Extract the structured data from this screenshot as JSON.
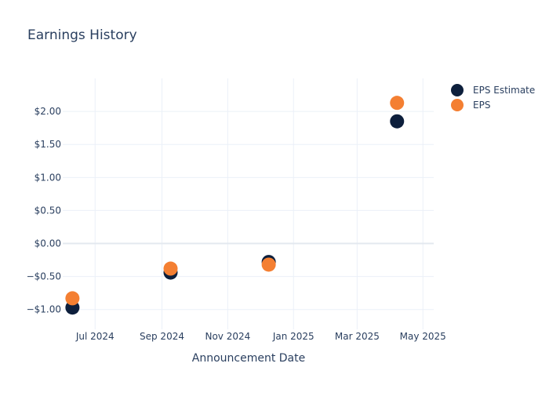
{
  "chart_data": {
    "type": "scatter",
    "title": "Earnings History",
    "xlabel": "Announcement Date",
    "ylabel": "",
    "x_ticks": [
      {
        "date": "2024-07-01",
        "label": "Jul 2024"
      },
      {
        "date": "2024-09-01",
        "label": "Sep 2024"
      },
      {
        "date": "2024-11-01",
        "label": "Nov 2024"
      },
      {
        "date": "2025-01-01",
        "label": "Jan 2025"
      },
      {
        "date": "2025-03-01",
        "label": "Mar 2025"
      },
      {
        "date": "2025-05-01",
        "label": "May 2025"
      }
    ],
    "xlim": [
      "2024-06-01",
      "2025-05-11"
    ],
    "y_ticks": [
      {
        "value": -1.0,
        "label": "−$1.00"
      },
      {
        "value": -0.5,
        "label": "−$0.50"
      },
      {
        "value": 0.0,
        "label": "$0.00"
      },
      {
        "value": 0.5,
        "label": "$0.50"
      },
      {
        "value": 1.0,
        "label": "$1.00"
      },
      {
        "value": 1.5,
        "label": "$1.50"
      },
      {
        "value": 2.0,
        "label": "$2.00"
      }
    ],
    "ylim": [
      -1.3,
      2.5
    ],
    "grid": true,
    "legend_position": "top-right",
    "series": [
      {
        "name": "EPS Estimate",
        "color": "#0d1f3c",
        "points": [
          {
            "x": "2024-06-10",
            "y": -0.97
          },
          {
            "x": "2024-09-09",
            "y": -0.44
          },
          {
            "x": "2024-12-09",
            "y": -0.28
          },
          {
            "x": "2025-04-07",
            "y": 1.85
          }
        ]
      },
      {
        "name": "EPS",
        "color": "#f47f32",
        "points": [
          {
            "x": "2024-06-10",
            "y": -0.83
          },
          {
            "x": "2024-09-09",
            "y": -0.38
          },
          {
            "x": "2024-12-09",
            "y": -0.32
          },
          {
            "x": "2025-04-07",
            "y": 2.13
          }
        ]
      }
    ]
  }
}
